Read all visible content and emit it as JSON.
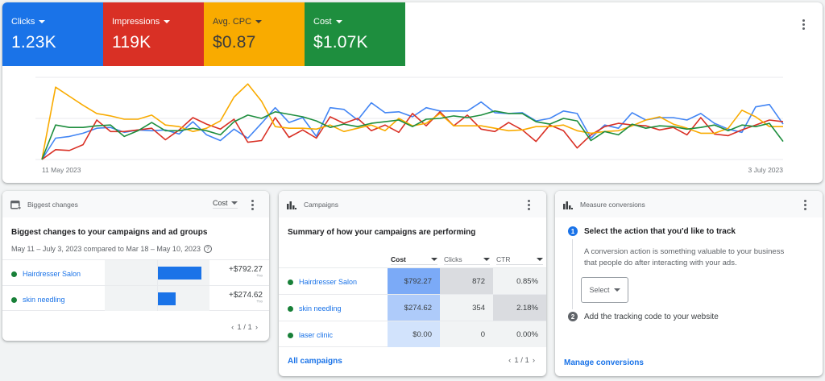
{
  "overview": {
    "metrics": [
      {
        "label": "Clicks",
        "value": "1.23K",
        "color": "#1a73e8"
      },
      {
        "label": "Impressions",
        "value": "119K",
        "color": "#d93025"
      },
      {
        "label": "Avg. CPC",
        "value": "$0.87",
        "color": "#f9ab00"
      },
      {
        "label": "Cost",
        "value": "$1.07K",
        "color": "#1e8e3e"
      }
    ],
    "x_start_label": "11 May 2023",
    "x_end_label": "3 July 2023"
  },
  "chart_data": {
    "type": "line",
    "title": "",
    "xlabel": "",
    "ylabel": "",
    "x_start": "11 May 2023",
    "x_end": "3 July 2023",
    "grid": true,
    "y_normalized": true,
    "ylim": [
      0,
      100
    ],
    "x_ticks": [
      "11 May 2023",
      "3 July 2023"
    ],
    "series": [
      {
        "name": "Clicks",
        "color": "#4285f4",
        "values": [
          0,
          26,
          28,
          32,
          38,
          39,
          33,
          36,
          35,
          36,
          31,
          46,
          30,
          23,
          37,
          26,
          44,
          63,
          45,
          51,
          28,
          63,
          61,
          48,
          69,
          57,
          58,
          52,
          63,
          59,
          59,
          59,
          70,
          57,
          56,
          57,
          47,
          50,
          59,
          56,
          26,
          42,
          38,
          57,
          48,
          51,
          51,
          48,
          56,
          44,
          37,
          33,
          64,
          67,
          43
        ]
      },
      {
        "name": "Impressions",
        "color": "#d93025",
        "values": [
          0,
          12,
          11,
          18,
          48,
          34,
          34,
          36,
          38,
          24,
          36,
          51,
          43,
          37,
          49,
          21,
          23,
          51,
          27,
          36,
          26,
          52,
          44,
          50,
          35,
          42,
          33,
          56,
          41,
          58,
          41,
          54,
          37,
          34,
          45,
          36,
          22,
          42,
          35,
          14,
          30,
          40,
          44,
          42,
          41,
          36,
          39,
          30,
          51,
          31,
          29,
          36,
          42,
          48,
          46
        ]
      },
      {
        "name": "Avg. CPC",
        "color": "#f9ab00",
        "values": [
          0,
          88,
          77,
          66,
          56,
          53,
          49,
          49,
          54,
          42,
          40,
          34,
          38,
          47,
          76,
          92,
          71,
          40,
          38,
          38,
          37,
          42,
          34,
          38,
          42,
          35,
          50,
          41,
          44,
          56,
          41,
          41,
          41,
          38,
          35,
          36,
          40,
          40,
          42,
          35,
          32,
          34,
          35,
          41,
          48,
          52,
          43,
          38,
          32,
          32,
          38,
          60,
          52,
          40,
          40
        ]
      },
      {
        "name": "Cost",
        "color": "#1e8e3e",
        "values": [
          0,
          42,
          39,
          39,
          41,
          42,
          28,
          35,
          45,
          35,
          35,
          38,
          35,
          30,
          46,
          54,
          50,
          58,
          55,
          52,
          47,
          39,
          43,
          40,
          44,
          46,
          48,
          40,
          49,
          50,
          53,
          51,
          54,
          59,
          56,
          56,
          46,
          43,
          50,
          47,
          23,
          34,
          30,
          43,
          38,
          41,
          40,
          37,
          39,
          42,
          35,
          42,
          40,
          44,
          22
        ]
      }
    ]
  },
  "biggest_changes": {
    "header": "Biggest changes",
    "metric_select": "Cost",
    "title": "Biggest changes to your campaigns and ad groups",
    "date_range": "May 11 – July 3, 2023 compared to Mar 18 – May 10, 2023",
    "help_icon": "?",
    "rows": [
      {
        "name": "Hairdresser Salon",
        "value": "+$792.27",
        "change": "+∞",
        "bar_pct": 100
      },
      {
        "name": "skin needling",
        "value": "+$274.62",
        "change": "+∞",
        "bar_pct": 35
      }
    ],
    "pager": "1 / 1"
  },
  "campaigns": {
    "header": "Campaigns",
    "title": "Summary of how your campaigns are performing",
    "columns": [
      "Cost",
      "Clicks",
      "CTR"
    ],
    "rows": [
      {
        "name": "Hairdresser Salon",
        "cost": "$792.27",
        "clicks": "872",
        "ctr": "0.85%"
      },
      {
        "name": "skin needling",
        "cost": "$274.62",
        "clicks": "354",
        "ctr": "2.18%"
      },
      {
        "name": "laser clinic",
        "cost": "$0.00",
        "clicks": "0",
        "ctr": "0.00%"
      }
    ],
    "all_link": "All campaigns",
    "pager": "1 / 1"
  },
  "conversions": {
    "header": "Measure conversions",
    "step1_num": "1",
    "step1_title": "Select the action that you'd like to track",
    "step1_desc_line1": "A conversion action is something valuable to your business",
    "step1_desc_line2": "that people do after interacting with your ads.",
    "select_label": "Select",
    "step2_num": "2",
    "step2_title": "Add the tracking code to your website",
    "manage_link": "Manage conversions"
  }
}
